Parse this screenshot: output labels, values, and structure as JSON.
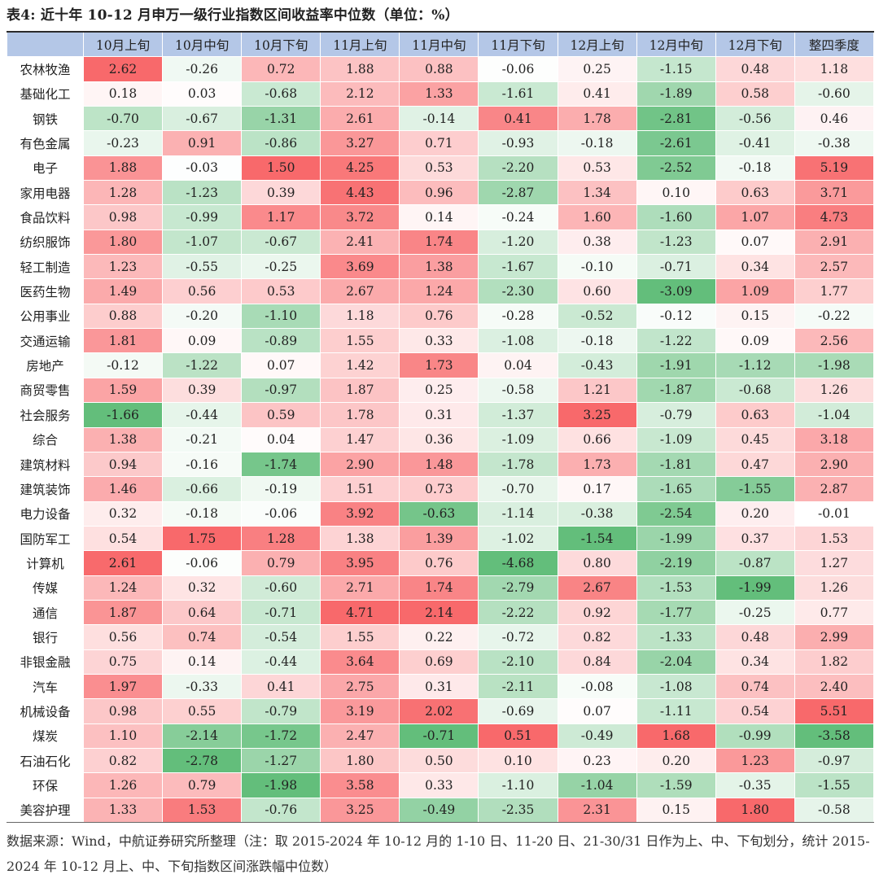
{
  "title": "表4: 近十年 10-12 月申万一级行业指数区间收益率中位数（单位：%）",
  "columns": [
    "10月上旬",
    "10月中旬",
    "10月下旬",
    "11月上旬",
    "11月中旬",
    "11月下旬",
    "12月上旬",
    "12月中旬",
    "12月下旬",
    "整四季度"
  ],
  "rows": [
    {
      "name": "农林牧渔",
      "values": [
        "2.62",
        "-0.26",
        "0.72",
        "1.88",
        "0.88",
        "-0.06",
        "0.25",
        "-1.15",
        "0.48",
        "1.18"
      ]
    },
    {
      "name": "基础化工",
      "values": [
        "0.18",
        "0.03",
        "-0.68",
        "2.12",
        "1.33",
        "-1.61",
        "0.41",
        "-1.89",
        "0.58",
        "-0.60"
      ]
    },
    {
      "name": "钢铁",
      "values": [
        "-0.70",
        "-0.67",
        "-1.31",
        "2.61",
        "-0.14",
        "0.41",
        "1.78",
        "-2.81",
        "-0.56",
        "0.46"
      ]
    },
    {
      "name": "有色金属",
      "values": [
        "-0.23",
        "0.91",
        "-0.86",
        "3.27",
        "0.71",
        "-0.93",
        "-0.18",
        "-2.61",
        "-0.41",
        "-0.38"
      ]
    },
    {
      "name": "电子",
      "values": [
        "1.88",
        "-0.03",
        "1.50",
        "4.25",
        "0.53",
        "-2.20",
        "0.53",
        "-2.52",
        "-0.18",
        "5.19"
      ]
    },
    {
      "name": "家用电器",
      "values": [
        "1.28",
        "-1.23",
        "0.39",
        "4.43",
        "0.96",
        "-2.87",
        "1.34",
        "0.10",
        "0.63",
        "3.71"
      ]
    },
    {
      "name": "食品饮料",
      "values": [
        "0.98",
        "-0.99",
        "1.17",
        "3.72",
        "0.14",
        "-0.24",
        "1.60",
        "-1.60",
        "1.07",
        "4.73"
      ]
    },
    {
      "name": "纺织服饰",
      "values": [
        "1.80",
        "-1.07",
        "-0.67",
        "2.41",
        "1.74",
        "-1.20",
        "0.38",
        "-1.23",
        "0.07",
        "2.91"
      ]
    },
    {
      "name": "轻工制造",
      "values": [
        "1.23",
        "-0.55",
        "-0.25",
        "3.69",
        "1.38",
        "-1.67",
        "-0.10",
        "-0.71",
        "0.34",
        "2.57"
      ]
    },
    {
      "name": "医药生物",
      "values": [
        "1.49",
        "0.56",
        "0.53",
        "2.67",
        "1.24",
        "-2.30",
        "0.60",
        "-3.09",
        "1.09",
        "1.77"
      ]
    },
    {
      "name": "公用事业",
      "values": [
        "0.88",
        "-0.20",
        "-1.10",
        "1.18",
        "0.76",
        "-0.28",
        "-0.52",
        "-0.12",
        "0.15",
        "-0.22"
      ]
    },
    {
      "name": "交通运输",
      "values": [
        "1.81",
        "0.09",
        "-0.89",
        "1.55",
        "0.33",
        "-1.08",
        "-0.18",
        "-1.22",
        "0.09",
        "2.56"
      ]
    },
    {
      "name": "房地产",
      "values": [
        "-0.12",
        "-1.22",
        "0.07",
        "1.42",
        "1.73",
        "0.04",
        "-0.43",
        "-1.91",
        "-1.12",
        "-1.98"
      ]
    },
    {
      "name": "商贸零售",
      "values": [
        "1.59",
        "0.39",
        "-0.97",
        "1.87",
        "0.25",
        "-0.58",
        "1.21",
        "-1.87",
        "-0.68",
        "1.26"
      ]
    },
    {
      "name": "社会服务",
      "values": [
        "-1.66",
        "-0.44",
        "0.59",
        "1.78",
        "0.31",
        "-1.37",
        "3.25",
        "-0.79",
        "0.63",
        "-1.04"
      ]
    },
    {
      "name": "综合",
      "values": [
        "1.38",
        "-0.21",
        "0.04",
        "1.47",
        "0.36",
        "-1.09",
        "0.66",
        "-1.09",
        "0.45",
        "3.18"
      ]
    },
    {
      "name": "建筑材料",
      "values": [
        "0.94",
        "-0.16",
        "-1.74",
        "2.90",
        "1.48",
        "-1.78",
        "1.73",
        "-1.81",
        "0.47",
        "2.90"
      ]
    },
    {
      "name": "建筑装饰",
      "values": [
        "1.46",
        "-0.66",
        "-0.19",
        "1.51",
        "0.73",
        "-0.70",
        "0.17",
        "-1.65",
        "-1.55",
        "2.87"
      ]
    },
    {
      "name": "电力设备",
      "values": [
        "0.32",
        "-0.18",
        "-0.06",
        "3.92",
        "-0.63",
        "-1.14",
        "-0.38",
        "-2.54",
        "0.20",
        "-0.01"
      ]
    },
    {
      "name": "国防军工",
      "values": [
        "0.54",
        "1.75",
        "1.28",
        "1.38",
        "1.39",
        "-1.02",
        "-1.54",
        "-1.99",
        "0.37",
        "1.53"
      ]
    },
    {
      "name": "计算机",
      "values": [
        "2.61",
        "-0.06",
        "0.79",
        "3.95",
        "0.76",
        "-4.68",
        "0.80",
        "-2.19",
        "-0.87",
        "1.27"
      ]
    },
    {
      "name": "传媒",
      "values": [
        "1.24",
        "0.32",
        "-0.60",
        "2.71",
        "1.74",
        "-2.79",
        "2.67",
        "-1.53",
        "-1.99",
        "1.26"
      ]
    },
    {
      "name": "通信",
      "values": [
        "1.87",
        "0.64",
        "-0.71",
        "4.71",
        "2.14",
        "-2.22",
        "0.92",
        "-1.77",
        "-0.25",
        "0.77"
      ]
    },
    {
      "name": "银行",
      "values": [
        "0.56",
        "0.74",
        "-0.54",
        "1.55",
        "0.22",
        "-0.72",
        "0.82",
        "-1.33",
        "0.48",
        "2.99"
      ]
    },
    {
      "name": "非银金融",
      "values": [
        "0.75",
        "0.14",
        "-0.44",
        "3.64",
        "0.69",
        "-2.10",
        "0.84",
        "-2.04",
        "0.34",
        "1.82"
      ]
    },
    {
      "name": "汽车",
      "values": [
        "1.97",
        "-0.33",
        "0.41",
        "2.75",
        "0.31",
        "-2.11",
        "-0.08",
        "-1.08",
        "0.74",
        "2.40"
      ]
    },
    {
      "name": "机械设备",
      "values": [
        "0.98",
        "0.55",
        "-0.79",
        "3.19",
        "2.02",
        "-0.69",
        "0.07",
        "-1.11",
        "0.54",
        "5.51"
      ]
    },
    {
      "name": "煤炭",
      "values": [
        "1.10",
        "-2.14",
        "-1.72",
        "2.47",
        "-0.71",
        "0.51",
        "-0.49",
        "1.68",
        "-0.99",
        "-3.58"
      ]
    },
    {
      "name": "石油石化",
      "values": [
        "0.82",
        "-2.78",
        "-1.27",
        "1.80",
        "0.50",
        "0.10",
        "0.23",
        "0.20",
        "1.23",
        "-0.97"
      ]
    },
    {
      "name": "环保",
      "values": [
        "1.26",
        "0.79",
        "-1.98",
        "3.58",
        "0.33",
        "-1.10",
        "-1.04",
        "-1.59",
        "-0.35",
        "-1.55"
      ]
    },
    {
      "name": "美容护理",
      "values": [
        "1.33",
        "1.53",
        "-0.76",
        "3.25",
        "-0.49",
        "-2.35",
        "2.31",
        "0.15",
        "1.80",
        "-0.58"
      ]
    }
  ],
  "colors": {
    "header_bg": "#b4c7e7",
    "positive": "#f8696b",
    "negative": "#63be7b",
    "neutral": "#ffffff"
  },
  "footer": "数据来源：Wind，中航证券研究所整理（注：取 2015-2024 年 10-12 月的 1-10 日、11-20 日、21-30/31 日作为上、中、下旬划分，统计 2015-2024 年 10-12 月上、中、下旬指数区间涨跌幅中位数）"
}
